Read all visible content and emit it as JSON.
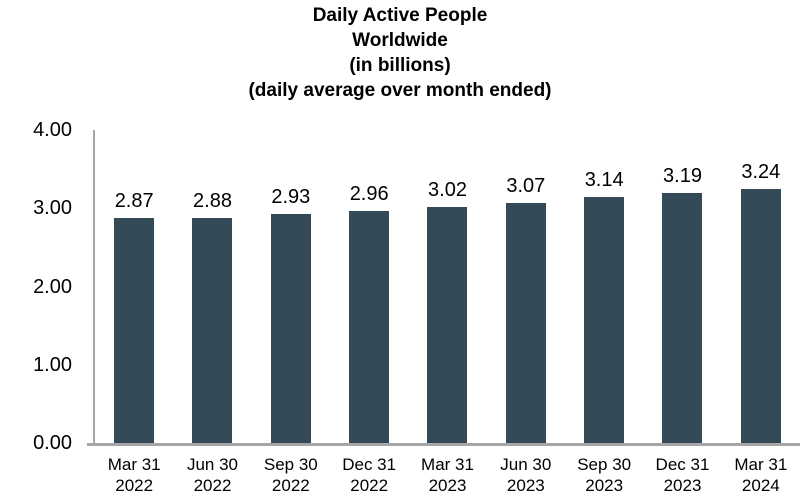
{
  "title_lines": [
    "Daily Active People",
    "Worldwide",
    "(in billions)",
    "(daily average over month ended)"
  ],
  "chart_data": {
    "type": "bar",
    "title": "Daily Active People Worldwide (in billions) (daily average over month ended)",
    "categories": [
      [
        "Mar 31",
        "2022"
      ],
      [
        "Jun 30",
        "2022"
      ],
      [
        "Sep 30",
        "2022"
      ],
      [
        "Dec 31",
        "2022"
      ],
      [
        "Mar 31",
        "2023"
      ],
      [
        "Jun 30",
        "2023"
      ],
      [
        "Sep 30",
        "2023"
      ],
      [
        "Dec 31",
        "2023"
      ],
      [
        "Mar 31",
        "2024"
      ]
    ],
    "values": [
      2.87,
      2.88,
      2.93,
      2.96,
      3.02,
      3.07,
      3.14,
      3.19,
      3.24
    ],
    "value_labels": [
      "2.87",
      "2.88",
      "2.93",
      "2.96",
      "3.02",
      "3.07",
      "3.14",
      "3.19",
      "3.24"
    ],
    "ylim": [
      0,
      4
    ],
    "y_ticks": [
      {
        "value": 4,
        "label": "4.00"
      },
      {
        "value": 3,
        "label": "3.00"
      },
      {
        "value": 2,
        "label": "2.00"
      },
      {
        "value": 1,
        "label": "1.00"
      },
      {
        "value": 0,
        "label": "0.00"
      }
    ],
    "grid": false,
    "legend": null,
    "colors": {
      "bar": "#344a57",
      "axis": "#a6a6a6",
      "text": "#000000",
      "background": "#ffffff"
    }
  }
}
